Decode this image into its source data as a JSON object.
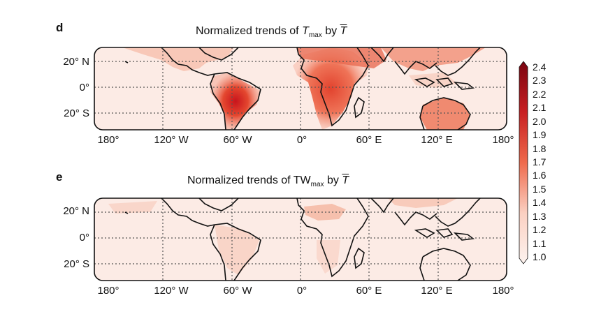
{
  "panels": [
    {
      "letter": "d",
      "title_prefix": "Normalized trends of ",
      "title_var": "T",
      "title_sub": "max",
      "title_by": " by ",
      "title_bar": "T"
    },
    {
      "letter": "e",
      "title_prefix": "Normalized trends of ",
      "title_var": "TW",
      "title_sub": "max",
      "title_by": " by ",
      "title_bar": "T"
    }
  ],
  "lat_labels": [
    "20° N",
    "0°",
    "20° S"
  ],
  "lon_labels": [
    "180°",
    "120° W",
    "60° W",
    "0°",
    "60° E",
    "120° E",
    "180°"
  ],
  "colorbar": {
    "ticks": [
      "2.4",
      "2.3",
      "2.2",
      "2.1",
      "2.0",
      "1.9",
      "1.8",
      "1.7",
      "1.6",
      "1.5",
      "1.4",
      "1.3",
      "1.2",
      "1.1",
      "1.0"
    ],
    "color_low": "#fdf3ef",
    "color_mid": "#ef6a4c",
    "color_high": "#7a0410"
  },
  "colors": {
    "ocean": "#fcebe5",
    "grid": "#555555",
    "coast": "#111111"
  }
}
